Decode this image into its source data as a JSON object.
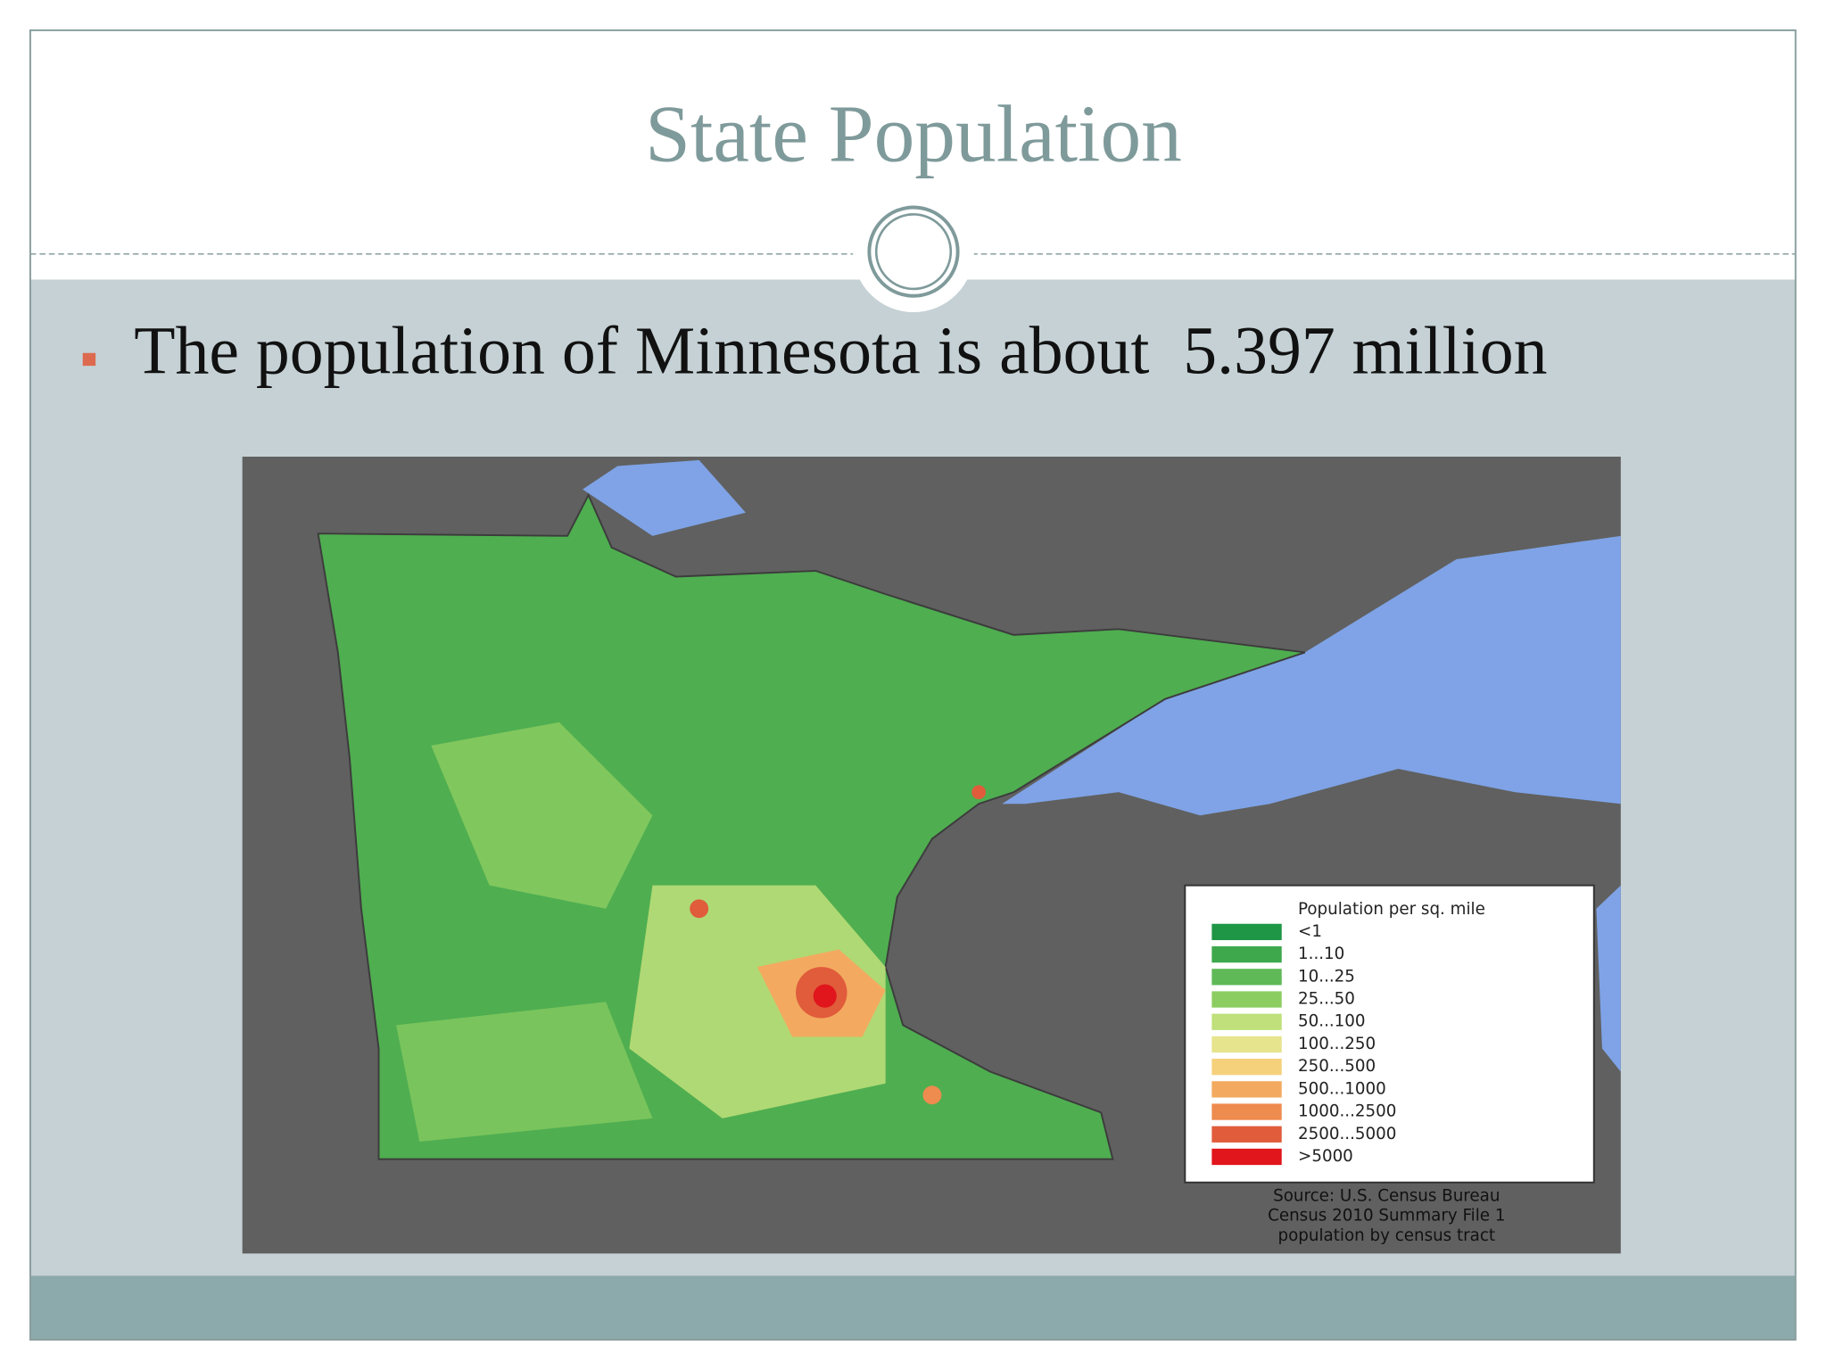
{
  "header": {
    "title": "State Population"
  },
  "bullets": [
    "The population of Minnesota is about  5.397 million"
  ],
  "map": {
    "legend": {
      "title": "Population per sq. mile",
      "items": [
        {
          "label": "<1",
          "color": "#1e9646"
        },
        {
          "label": "1...10",
          "color": "#3da84c"
        },
        {
          "label": "10...25",
          "color": "#5fb957"
        },
        {
          "label": "25...50",
          "color": "#8ccd62"
        },
        {
          "label": "50...100",
          "color": "#bfe07a"
        },
        {
          "label": "100...250",
          "color": "#e6e48c"
        },
        {
          "label": "250...500",
          "color": "#f6d17c"
        },
        {
          "label": "500...1000",
          "color": "#f3aa60"
        },
        {
          "label": "1000...2500",
          "color": "#ee8b4f"
        },
        {
          "label": "2500...5000",
          "color": "#e05c3b"
        },
        {
          "label": ">5000",
          "color": "#e0161c"
        }
      ]
    },
    "source": [
      "Source: U.S. Census Bureau",
      "Census 2010 Summary File 1",
      "population by census tract"
    ]
  }
}
